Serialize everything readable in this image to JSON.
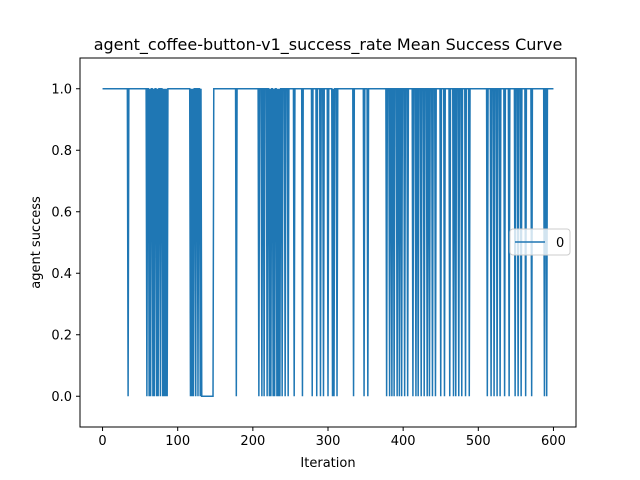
{
  "chart_data": {
    "type": "line",
    "title": "agent_coffee-button-v1_success_rate Mean Success Curve",
    "xlabel": "Iteration",
    "ylabel": "agent success",
    "xlim": [
      -30,
      630
    ],
    "ylim": [
      -0.1,
      1.1
    ],
    "xticks": [
      0,
      100,
      200,
      300,
      400,
      500,
      600
    ],
    "yticks": [
      0.0,
      0.2,
      0.4,
      0.6,
      0.8,
      1.0
    ],
    "ytick_labels": [
      "0.0",
      "0.2",
      "0.4",
      "0.6",
      "0.8",
      "1.0"
    ],
    "grid": false,
    "legend_position": "center-right",
    "series": [
      {
        "name": "0",
        "color": "#1f77b4",
        "zero_points": [
          34,
          59,
          62,
          64,
          67,
          69,
          72,
          74,
          77,
          80,
          82,
          84,
          86,
          117,
          119,
          121,
          124,
          127,
          130,
          132,
          133,
          134,
          135,
          136,
          137,
          138,
          139,
          140,
          141,
          142,
          143,
          144,
          145,
          146,
          147,
          178,
          208,
          212,
          215,
          219,
          222,
          224,
          227,
          229,
          232,
          234,
          236,
          239,
          243,
          247,
          255,
          266,
          279,
          285,
          290,
          294,
          300,
          306,
          308,
          312,
          334,
          348,
          353,
          378,
          382,
          385,
          388,
          392,
          395,
          398,
          402,
          406,
          413,
          417,
          420,
          424,
          428,
          432,
          435,
          439,
          443,
          450,
          455,
          462,
          467,
          470,
          474,
          478,
          483,
          488,
          512,
          517,
          521,
          525,
          529,
          535,
          541,
          549,
          553,
          557,
          563,
          571,
          588,
          591
        ],
        "x_range": [
          0,
          600
        ],
        "default_value": 1.0
      }
    ]
  }
}
